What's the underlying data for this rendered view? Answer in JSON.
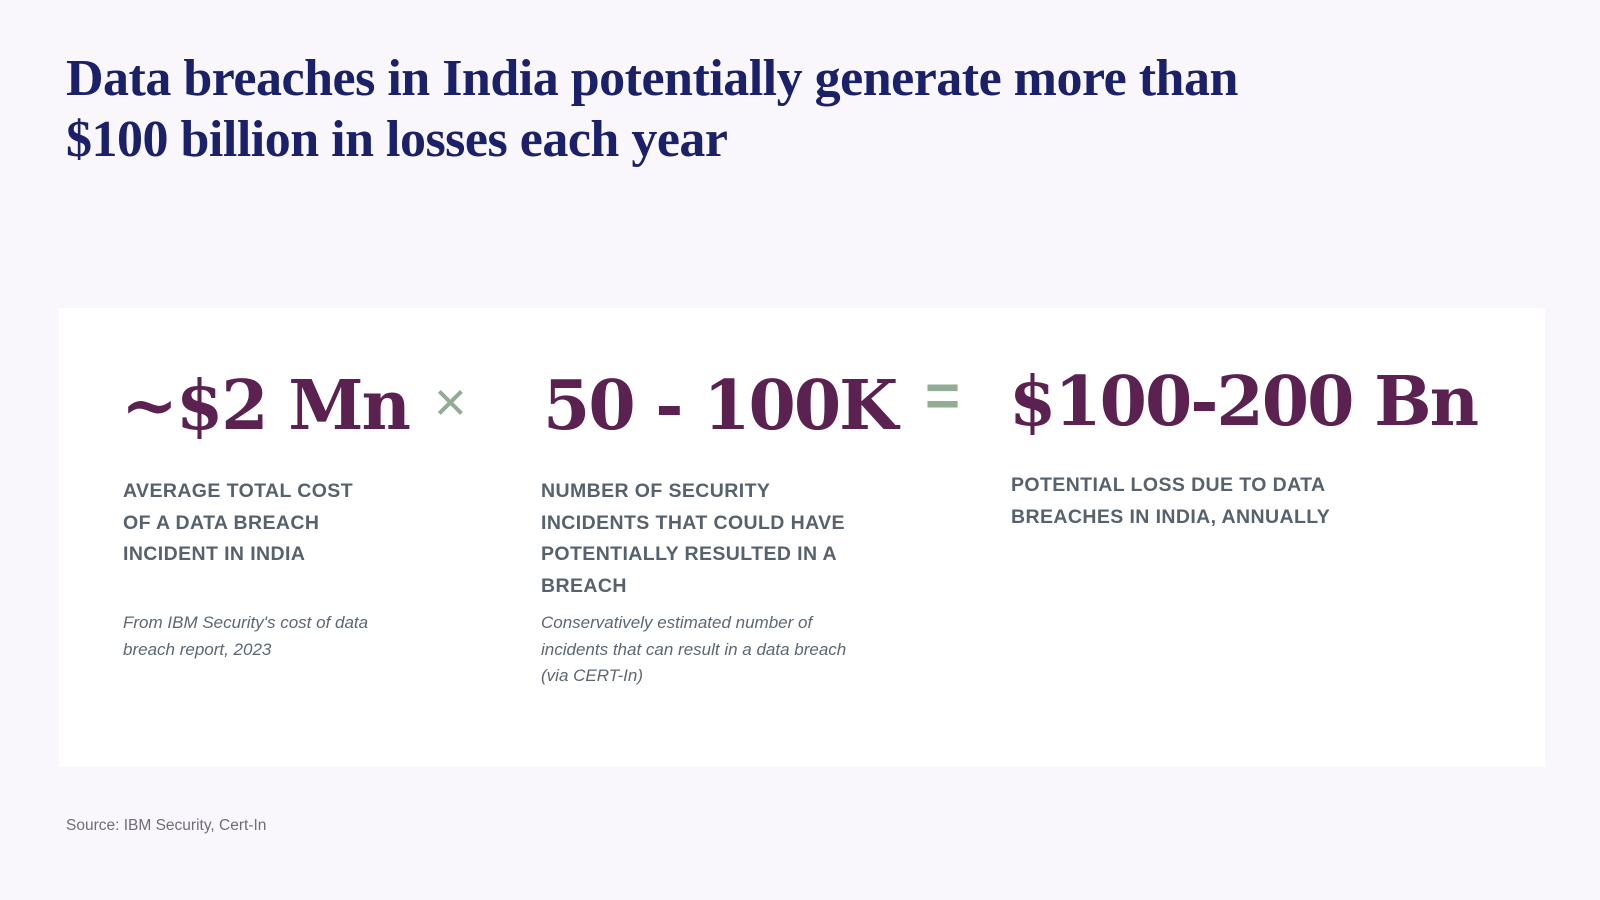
{
  "title": {
    "line1": "Data breaches in India potentially generate more than",
    "line2": "$100 billion in losses each year",
    "full": "Data breaches in India potentially generate more than\n$100 billion in losses each year"
  },
  "card": {
    "stats": [
      {
        "value": "~$2 Mn",
        "label": "AVERAGE TOTAL COST\nOF A DATA BREACH\nINCIDENT IN INDIA",
        "note": "From IBM Security's cost of data\nbreach report, 2023"
      },
      {
        "value": "50 - 100K",
        "label": "NUMBER OF SECURITY\nINCIDENTS THAT COULD HAVE\nPOTENTIALLY RESULTED IN A\nBREACH",
        "note": "Conservatively estimated number of\nincidents that can result in a data breach\n(via CERT-In)"
      },
      {
        "value": "$100-200 Bn",
        "label": "POTENTIAL LOSS DUE TO DATA\nBREACHES IN INDIA, ANNUALLY",
        "note": ""
      }
    ],
    "operators": {
      "multiply": "×",
      "equals": "="
    }
  },
  "source": "Source: IBM Security, Cert-In",
  "colors": {
    "background": "#f9f7fb",
    "card": "#ffffff",
    "title": "#1b2168",
    "stat_value": "#5b2251",
    "operator": "#92ac95",
    "label": "#57626d",
    "note": "#5d6771",
    "source": "#6e6e78"
  }
}
